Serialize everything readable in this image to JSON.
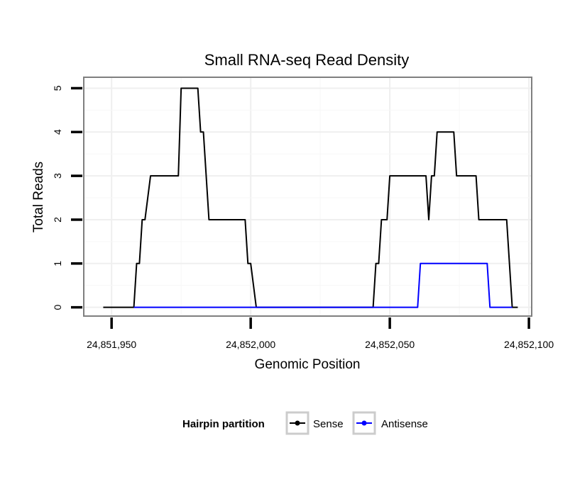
{
  "chart_data": {
    "type": "line",
    "title": "Small RNA-seq Read Density",
    "xlabel": "Genomic Position",
    "ylabel": "Total Reads",
    "xlim": [
      24851940,
      24852101
    ],
    "ylim": [
      -0.2,
      5.25
    ],
    "x_ticks": [
      24851950,
      24852000,
      24852050,
      24852100
    ],
    "x_tick_labels": [
      "24,851,950",
      "24,852,000",
      "24,852,050",
      "24,852,100"
    ],
    "y_ticks": [
      0,
      1,
      2,
      3,
      4,
      5
    ],
    "y_tick_labels": [
      "0",
      "1",
      "2",
      "3",
      "4",
      "5"
    ],
    "grid": true,
    "legend": {
      "title": "Hairpin partition",
      "position": "bottom"
    },
    "series": [
      {
        "name": "Sense",
        "color": "#000000",
        "x": [
          24851947,
          24851958,
          24851959,
          24851960,
          24851961,
          24851962,
          24851964,
          24851965,
          24851974,
          24851975,
          24851981,
          24851982,
          24851983,
          24851985,
          24851998,
          24851999,
          24852000,
          24852002,
          24852044,
          24852045,
          24852046,
          24852047,
          24852049,
          24852050,
          24852063,
          24852064,
          24852065,
          24852066,
          24852067,
          24852073,
          24852074,
          24852081,
          24852082,
          24852092,
          24852094,
          24852096
        ],
        "values": [
          0,
          0,
          1,
          1,
          2,
          2,
          3,
          3,
          3,
          5,
          5,
          4,
          4,
          2,
          2,
          1,
          1,
          0,
          0,
          1,
          1,
          2,
          2,
          3,
          3,
          2,
          3,
          3,
          4,
          4,
          3,
          3,
          2,
          2,
          0,
          0
        ]
      },
      {
        "name": "Antisense",
        "color": "#0000ff",
        "x": [
          24851958,
          24852060,
          24852061,
          24852085,
          24852086,
          24852094
        ],
        "values": [
          0,
          0,
          1,
          1,
          0,
          0
        ]
      }
    ]
  }
}
